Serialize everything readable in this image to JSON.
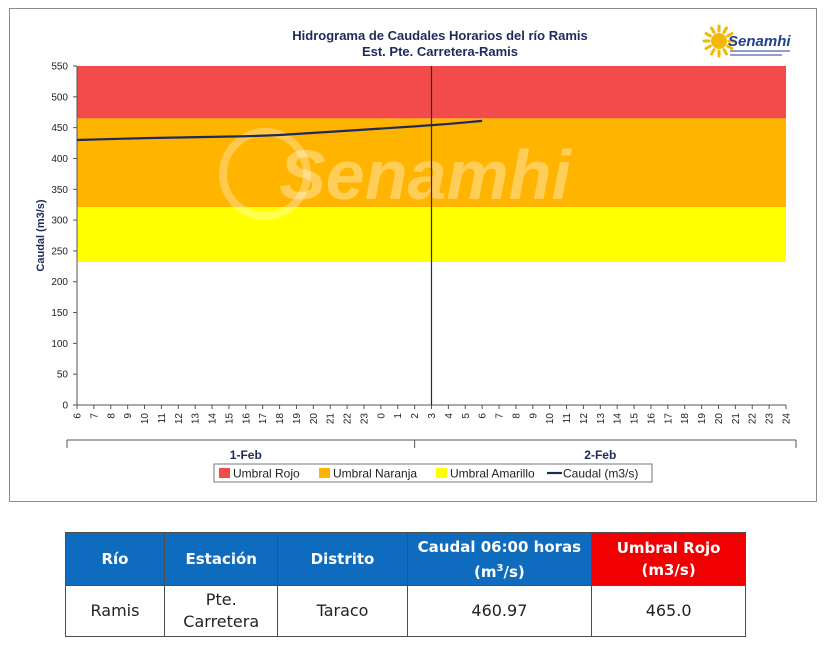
{
  "chart_data": {
    "type": "line",
    "title": "Hidrograma de Caudales Horarios del río Ramis",
    "subtitle": "Est. Pte. Carretera-Ramis",
    "ylabel": "Caudal  (m3/s)",
    "ylim": [
      0,
      550
    ],
    "yticks": [
      0,
      50,
      100,
      150,
      200,
      250,
      300,
      350,
      400,
      450,
      500,
      550
    ],
    "x_hours": [
      "6",
      "7",
      "8",
      "9",
      "10",
      "11",
      "12",
      "13",
      "14",
      "15",
      "16",
      "17",
      "18",
      "19",
      "20",
      "21",
      "22",
      "23",
      "0",
      "1",
      "2",
      "3",
      "4",
      "5",
      "6",
      "7",
      "8",
      "9",
      "10",
      "11",
      "12",
      "13",
      "14",
      "15",
      "16",
      "17",
      "18",
      "19",
      "20",
      "21",
      "22",
      "23",
      "24"
    ],
    "days": [
      {
        "label": "1-Feb",
        "start_index": 0,
        "end_index": 20
      },
      {
        "label": "2-Feb",
        "start_index": 20,
        "end_index": 42
      }
    ],
    "current_time_index": 21,
    "thresholds": {
      "amarillo": 232,
      "naranja": 321,
      "rojo": 465,
      "top": 550
    },
    "series": [
      {
        "name": "Caudal (m3/s)",
        "color": "#1f2a5c",
        "points": [
          {
            "i": 0,
            "v": 430
          },
          {
            "i": 4,
            "v": 433
          },
          {
            "i": 8,
            "v": 435
          },
          {
            "i": 10,
            "v": 436
          },
          {
            "i": 12,
            "v": 438
          },
          {
            "i": 16,
            "v": 445
          },
          {
            "i": 20,
            "v": 452
          },
          {
            "i": 22,
            "v": 456
          },
          {
            "i": 24,
            "v": 461
          }
        ]
      }
    ],
    "legend": [
      {
        "label": "Umbral Rojo",
        "color": "#f34b4b",
        "type": "box"
      },
      {
        "label": "Umbral Naranja",
        "color": "#ffb400",
        "type": "box"
      },
      {
        "label": "Umbral Amarillo",
        "color": "#ffff00",
        "type": "box"
      },
      {
        "label": "Caudal (m3/s)",
        "color": "#1f2a5c",
        "type": "line"
      }
    ],
    "zone_colors": {
      "rojo": "#f34b4b",
      "naranja": "#ffb400",
      "amarillo": "#ffff00",
      "normal": "#ffffff"
    }
  },
  "logo": {
    "text": "Senamhi",
    "watermark": "Senamhi"
  },
  "table": {
    "headers": {
      "rio": "Río",
      "estacion": "Estación",
      "distrito": "Distrito",
      "caudal_line1": "Caudal 06:00 horas",
      "caudal_line2_a": "(m",
      "caudal_line2_sup": "3",
      "caudal_line2_b": "/s)",
      "umbral_line1": "Umbral Rojo",
      "umbral_line2": "(m3/s)"
    },
    "row": {
      "rio": "Ramis",
      "estacion_line1": "Pte.",
      "estacion_line2": "Carretera",
      "distrito": "Taraco",
      "caudal": "460.97",
      "umbral": "465.0"
    }
  }
}
